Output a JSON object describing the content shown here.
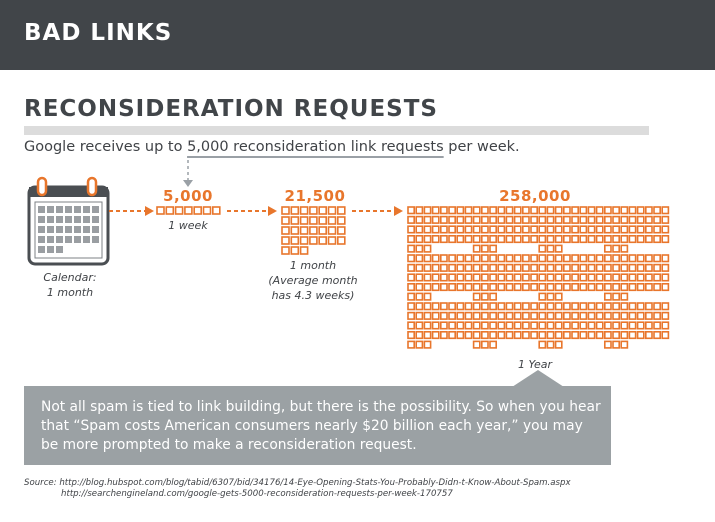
{
  "header": {
    "title": "BAD LINKS"
  },
  "section": {
    "title": "RECONSIDERATION REQUESTS"
  },
  "intro": {
    "prefix": "Google receives up to ",
    "highlight": "5,000 reconsideration link requests",
    "suffix": " per week."
  },
  "calendar": {
    "label_line1": "Calendar:",
    "label_line2": "1 month"
  },
  "stages": [
    {
      "count": "5,000",
      "label_line1": "1 week",
      "label_line2": "",
      "label_line3": ""
    },
    {
      "count": "21,500",
      "label_line1": "1 month",
      "label_line2": "(Average month",
      "label_line3": "has 4.3 weeks)"
    },
    {
      "count": "258,000",
      "label_line1": "1 Year",
      "label_line2": "",
      "label_line3": ""
    }
  ],
  "callout": {
    "text": "Not all spam is tied to link building, but there is the possibility. So when you hear that “Spam costs American consumers nearly $20 billion each year,” you may be more prompted to make a reconsideration request."
  },
  "source": {
    "line1": "Source: http://blog.hubspot.com/blog/tabid/6307/bid/34176/14-Eye-Opening-Stats-You-Probably-Didn-t-Know-About-Spam.aspx",
    "line2": "http://searchengineland.com/google-gets-5000-reconsideration-requests-per-week-170757"
  },
  "colors": {
    "accent": "#e8762c",
    "dark": "#414549",
    "callout": "#9ba1a4"
  }
}
